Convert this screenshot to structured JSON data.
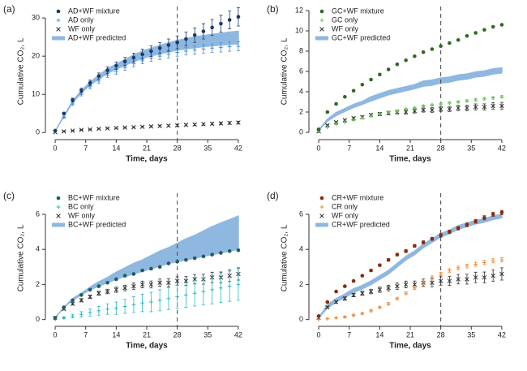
{
  "chart_data": [
    {
      "type": "scatter",
      "panel_label": "(a)",
      "xlabel": "Time, days",
      "ylabel": "Cumulative CO₂, L",
      "xlim": [
        -1.5,
        43.5
      ],
      "xticks": [
        0,
        7,
        14,
        21,
        28,
        35,
        42
      ],
      "ylim": [
        -1,
        33
      ],
      "yticks": [
        0,
        10,
        20,
        30
      ],
      "vline": 28,
      "legend": "top-left",
      "x": [
        0,
        2,
        4,
        6,
        8,
        10,
        12,
        14,
        16,
        18,
        20,
        22,
        24,
        26,
        28,
        30,
        32,
        34,
        36,
        38,
        40,
        42
      ],
      "series": [
        {
          "name": "AD+WF mixture",
          "color": "#1b3a6b",
          "marker": "circle",
          "values": [
            0.5,
            5,
            8.5,
            11,
            13,
            14.8,
            16.3,
            17.5,
            18.6,
            19.6,
            20.5,
            21.3,
            22.1,
            22.9,
            23.6,
            24.5,
            25.5,
            26.5,
            27.5,
            28.5,
            29.5,
            30.3
          ],
          "errors": [
            0,
            0.3,
            0.5,
            0.6,
            0.7,
            0.8,
            0.9,
            1.0,
            1.1,
            1.2,
            1.3,
            1.4,
            1.5,
            1.6,
            1.7,
            1.8,
            1.9,
            2.0,
            2.1,
            2.2,
            2.3,
            2.4
          ]
        },
        {
          "name": "AD only",
          "color": "#4a90d9",
          "marker": "plus",
          "values": [
            0.3,
            4,
            7.5,
            10,
            12,
            13.5,
            15,
            16,
            17,
            18,
            18.8,
            19.5,
            20,
            20.5,
            21,
            21.3,
            21.6,
            21.9,
            22.1,
            22.3,
            22.5,
            22.6
          ],
          "errors": [
            0,
            0.2,
            0.3,
            0.4,
            0.5,
            0.6,
            0.6,
            0.7,
            0.7,
            0.8,
            0.8,
            0.9,
            0.9,
            1.0,
            1.0,
            1.0,
            1.1,
            1.1,
            1.1,
            1.2,
            1.2,
            1.2
          ]
        },
        {
          "name": "WF only",
          "color": "#333333",
          "marker": "cross",
          "values": [
            0.1,
            0.3,
            0.5,
            0.7,
            0.8,
            1.0,
            1.1,
            1.2,
            1.3,
            1.4,
            1.5,
            1.6,
            1.7,
            1.8,
            1.9,
            2.0,
            2.1,
            2.2,
            2.3,
            2.4,
            2.5,
            2.6
          ],
          "errors": [
            0,
            0.05,
            0.07,
            0.09,
            0.1,
            0.12,
            0.13,
            0.15,
            0.16,
            0.18,
            0.19,
            0.2,
            0.21,
            0.23,
            0.24,
            0.25,
            0.27,
            0.28,
            0.3,
            0.31,
            0.33,
            0.35
          ]
        }
      ],
      "band": {
        "name": "AD+WF predicted",
        "color": "#8fb8e0",
        "lower": [
          0.4,
          4.2,
          7.8,
          10.4,
          12.4,
          14.0,
          15.5,
          16.6,
          17.6,
          18.6,
          19.4,
          20.1,
          20.6,
          21.1,
          21.6,
          21.9,
          22.2,
          22.5,
          22.7,
          22.9,
          23.1,
          23.2
        ],
        "upper": [
          0.4,
          4.4,
          8.2,
          11.0,
          13.2,
          15.0,
          16.7,
          17.9,
          19.1,
          20.3,
          21.3,
          22.1,
          22.8,
          23.5,
          24.1,
          24.6,
          25.0,
          25.4,
          25.7,
          26.0,
          26.3,
          26.5
        ]
      }
    },
    {
      "type": "scatter",
      "panel_label": "(b)",
      "xlabel": "Time, days",
      "ylabel": "Cumulative CO₂, L",
      "xlim": [
        -1.5,
        43.5
      ],
      "xticks": [
        0,
        7,
        14,
        21,
        28,
        35,
        42
      ],
      "ylim": [
        -0.4,
        12.4
      ],
      "yticks": [
        0,
        2,
        4,
        6,
        8,
        10,
        12
      ],
      "vline": 28,
      "legend": "top-left",
      "x": [
        0,
        2,
        4,
        6,
        8,
        10,
        12,
        14,
        16,
        18,
        20,
        22,
        24,
        26,
        28,
        30,
        32,
        34,
        36,
        38,
        40,
        42
      ],
      "series": [
        {
          "name": "GC+WF mixture",
          "color": "#2e6b1e",
          "marker": "circle",
          "values": [
            0.3,
            2,
            2.8,
            3.5,
            4.1,
            4.7,
            5.2,
            5.7,
            6.2,
            6.7,
            7.1,
            7.5,
            7.9,
            8.2,
            8.5,
            8.8,
            9.1,
            9.5,
            9.8,
            10.1,
            10.4,
            10.6
          ]
        },
        {
          "name": "GC only",
          "color": "#6bbf59",
          "marker": "plus",
          "values": [
            0.1,
            0.5,
            0.8,
            1.0,
            1.2,
            1.4,
            1.6,
            1.8,
            2.0,
            2.1,
            2.3,
            2.4,
            2.6,
            2.7,
            2.8,
            2.9,
            3.0,
            3.1,
            3.2,
            3.3,
            3.4,
            3.5
          ],
          "errors": [
            0,
            0.02,
            0.03,
            0.04,
            0.05,
            0.05,
            0.06,
            0.06,
            0.07,
            0.07,
            0.08,
            0.08,
            0.09,
            0.09,
            0.1,
            0.1,
            0.1,
            0.11,
            0.11,
            0.12,
            0.12,
            0.12
          ]
        },
        {
          "name": "WF only",
          "color": "#333333",
          "marker": "cross",
          "values": [
            0.1,
            0.7,
            1.0,
            1.2,
            1.4,
            1.5,
            1.7,
            1.8,
            1.9,
            2.0,
            2.0,
            2.1,
            2.2,
            2.2,
            2.3,
            2.3,
            2.4,
            2.4,
            2.5,
            2.5,
            2.6,
            2.6
          ],
          "errors": [
            0,
            0.05,
            0.07,
            0.09,
            0.1,
            0.12,
            0.13,
            0.15,
            0.16,
            0.18,
            0.19,
            0.2,
            0.21,
            0.23,
            0.24,
            0.25,
            0.27,
            0.28,
            0.3,
            0.31,
            0.33,
            0.35
          ]
        }
      ],
      "band": {
        "name": "GC+WF predicted",
        "color": "#8fb8e0",
        "lower": [
          0.2,
          1.1,
          1.65,
          2.05,
          2.45,
          2.75,
          3.1,
          3.4,
          3.7,
          3.9,
          4.1,
          4.3,
          4.55,
          4.65,
          4.85,
          4.95,
          5.15,
          5.25,
          5.45,
          5.55,
          5.75,
          5.85
        ],
        "upper": [
          0.2,
          1.3,
          1.95,
          2.35,
          2.75,
          3.05,
          3.5,
          3.8,
          4.1,
          4.3,
          4.5,
          4.7,
          5.05,
          5.15,
          5.35,
          5.45,
          5.65,
          5.75,
          5.95,
          6.05,
          6.25,
          6.35
        ]
      }
    },
    {
      "type": "scatter",
      "panel_label": "(c)",
      "xlabel": "Time, days",
      "ylabel": "Cumulative CO₂, L",
      "xlim": [
        -1.5,
        43.5
      ],
      "xticks": [
        0,
        7,
        14,
        21,
        28,
        35,
        42
      ],
      "ylim": [
        -0.2,
        7.2
      ],
      "yticks": [
        0,
        2,
        4,
        6
      ],
      "vline": 28,
      "legend": "top-left",
      "x": [
        0,
        2,
        4,
        6,
        8,
        10,
        12,
        14,
        16,
        18,
        20,
        22,
        24,
        26,
        28,
        30,
        32,
        34,
        36,
        38,
        40,
        42
      ],
      "series": [
        {
          "name": "BC+WF mixture",
          "color": "#1f5f5b",
          "marker": "circle",
          "values": [
            0.1,
            0.7,
            1.1,
            1.4,
            1.7,
            1.9,
            2.1,
            2.3,
            2.5,
            2.6,
            2.8,
            2.9,
            3.0,
            3.2,
            3.3,
            3.4,
            3.5,
            3.6,
            3.7,
            3.8,
            3.9,
            3.95
          ]
        },
        {
          "name": "BC only",
          "color": "#2abcc2",
          "marker": "plus",
          "values": [
            0.0,
            0.1,
            0.2,
            0.3,
            0.4,
            0.5,
            0.6,
            0.65,
            0.75,
            0.85,
            0.95,
            1.0,
            1.1,
            1.2,
            1.3,
            1.4,
            1.5,
            1.6,
            1.7,
            1.8,
            1.9,
            2.0
          ],
          "errors": [
            0,
            0.05,
            0.1,
            0.15,
            0.2,
            0.25,
            0.3,
            0.35,
            0.4,
            0.45,
            0.5,
            0.55,
            0.6,
            0.63,
            0.66,
            0.7,
            0.73,
            0.76,
            0.8,
            0.83,
            0.86,
            0.9
          ]
        },
        {
          "name": "WF only",
          "color": "#333333",
          "marker": "cross",
          "values": [
            0.1,
            0.6,
            0.9,
            1.1,
            1.3,
            1.5,
            1.6,
            1.7,
            1.8,
            1.9,
            2.0,
            2.0,
            2.1,
            2.1,
            2.2,
            2.2,
            2.3,
            2.3,
            2.4,
            2.4,
            2.5,
            2.6
          ],
          "errors": [
            0,
            0.05,
            0.07,
            0.09,
            0.1,
            0.12,
            0.13,
            0.15,
            0.16,
            0.18,
            0.19,
            0.2,
            0.21,
            0.23,
            0.24,
            0.25,
            0.27,
            0.28,
            0.3,
            0.31,
            0.33,
            0.35
          ]
        }
      ],
      "band": {
        "name": "BC+WF predicted",
        "color": "#8fb8e0",
        "lower": [
          0.1,
          0.7,
          1.1,
          1.4,
          1.7,
          1.9,
          2.1,
          2.3,
          2.45,
          2.6,
          2.75,
          2.9,
          3.05,
          3.2,
          3.3,
          3.4,
          3.5,
          3.6,
          3.7,
          3.8,
          3.9,
          4.0
        ],
        "upper": [
          0.1,
          0.7,
          1.2,
          1.5,
          1.85,
          2.15,
          2.4,
          2.7,
          2.95,
          3.2,
          3.4,
          3.65,
          3.9,
          4.1,
          4.35,
          4.6,
          4.8,
          5.05,
          5.3,
          5.5,
          5.7,
          5.9
        ]
      }
    },
    {
      "type": "scatter",
      "panel_label": "(d)",
      "xlabel": "Time, days",
      "ylabel": "Cumulative CO₂, L",
      "xlim": [
        -1.5,
        43.5
      ],
      "xticks": [
        0,
        7,
        14,
        21,
        28,
        35,
        42
      ],
      "ylim": [
        -0.2,
        7.2
      ],
      "yticks": [
        0,
        2,
        4,
        6
      ],
      "vline": 28,
      "legend": "top-left",
      "x": [
        0,
        2,
        4,
        6,
        8,
        10,
        12,
        14,
        16,
        18,
        20,
        22,
        24,
        26,
        28,
        30,
        32,
        34,
        36,
        38,
        40,
        42
      ],
      "series": [
        {
          "name": "CR+WF mixture",
          "color": "#8a2b0d",
          "marker": "circle",
          "values": [
            0.2,
            1.0,
            1.6,
            1.9,
            2.2,
            2.5,
            2.8,
            3.1,
            3.4,
            3.7,
            3.9,
            4.2,
            4.4,
            4.6,
            4.8,
            5.0,
            5.2,
            5.4,
            5.6,
            5.8,
            6.0,
            6.1
          ],
          "errors": [
            0,
            0.02,
            0.03,
            0.04,
            0.05,
            0.05,
            0.06,
            0.06,
            0.07,
            0.07,
            0.08,
            0.08,
            0.09,
            0.09,
            0.1,
            0.1,
            0.1,
            0.11,
            0.11,
            0.12,
            0.12,
            0.12
          ]
        },
        {
          "name": "CR only",
          "color": "#f08a3a",
          "marker": "plus",
          "values": [
            0,
            0.05,
            0.1,
            0.15,
            0.25,
            0.35,
            0.5,
            0.7,
            0.9,
            1.2,
            1.5,
            1.8,
            2.1,
            2.4,
            2.6,
            2.8,
            2.95,
            3.05,
            3.15,
            3.25,
            3.35,
            3.4
          ],
          "errors": [
            0,
            0.02,
            0.03,
            0.04,
            0.05,
            0.05,
            0.06,
            0.06,
            0.07,
            0.07,
            0.08,
            0.08,
            0.09,
            0.09,
            0.1,
            0.1,
            0.1,
            0.11,
            0.11,
            0.12,
            0.12,
            0.12
          ]
        },
        {
          "name": "WF only",
          "color": "#333333",
          "marker": "cross",
          "values": [
            0.1,
            0.7,
            1.0,
            1.2,
            1.4,
            1.5,
            1.6,
            1.7,
            1.8,
            1.9,
            2.0,
            2.0,
            2.1,
            2.1,
            2.2,
            2.2,
            2.3,
            2.3,
            2.4,
            2.4,
            2.5,
            2.6
          ],
          "errors": [
            0,
            0.05,
            0.07,
            0.09,
            0.1,
            0.12,
            0.13,
            0.15,
            0.16,
            0.18,
            0.19,
            0.2,
            0.21,
            0.23,
            0.24,
            0.25,
            0.27,
            0.28,
            0.3,
            0.31,
            0.33,
            0.35
          ]
        }
      ],
      "band": {
        "name": "CR+WF predicted",
        "color": "#8fb8e0",
        "lower": [
          0.1,
          0.65,
          1.0,
          1.25,
          1.55,
          1.75,
          2.0,
          2.3,
          2.6,
          3.0,
          3.4,
          3.7,
          4.1,
          4.4,
          4.7,
          4.9,
          5.15,
          5.3,
          5.45,
          5.55,
          5.7,
          5.8
        ],
        "upper": [
          0.1,
          0.85,
          1.2,
          1.45,
          1.75,
          1.95,
          2.2,
          2.5,
          2.8,
          3.2,
          3.6,
          3.9,
          4.3,
          4.6,
          4.9,
          5.1,
          5.35,
          5.5,
          5.65,
          5.75,
          5.9,
          6.0
        ]
      }
    }
  ]
}
